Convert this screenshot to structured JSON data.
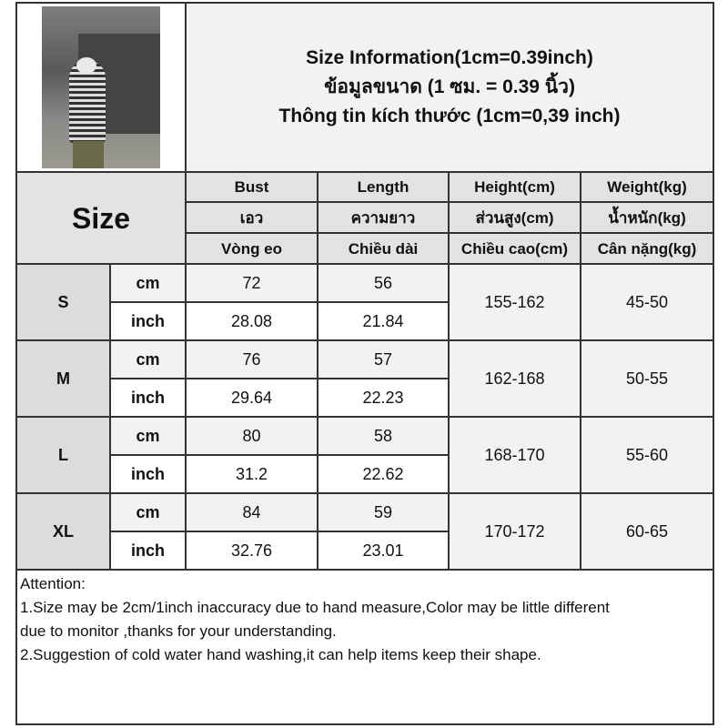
{
  "title": {
    "line1": "Size Information(1cm=0.39inch)",
    "line2": "ข้อมูลขนาด (1 ซม. = 0.39 นิ้ว)",
    "line3": "Thông tin kích thước (1cm=0,39 inch)"
  },
  "header": {
    "size_label": "Size",
    "columns": [
      {
        "en": "Bust",
        "th": "เอว",
        "vi": "Vòng eo"
      },
      {
        "en": "Length",
        "th": "ความยาว",
        "vi": "Chiều dài"
      },
      {
        "en": "Height(cm)",
        "th": "ส่วนสูง(cm)",
        "vi": "Chiều cao(cm)"
      },
      {
        "en": "Weight(kg)",
        "th": "น้ำหนัก(kg)",
        "vi": "Cân nặng(kg)"
      }
    ]
  },
  "units": {
    "cm": "cm",
    "inch": "inch"
  },
  "rows": [
    {
      "size": "S",
      "bust_cm": "72",
      "length_cm": "56",
      "bust_inch": "28.08",
      "length_inch": "21.84",
      "height": "155-162",
      "weight": "45-50"
    },
    {
      "size": "M",
      "bust_cm": "76",
      "length_cm": "57",
      "bust_inch": "29.64",
      "length_inch": "22.23",
      "height": "162-168",
      "weight": "50-55"
    },
    {
      "size": "L",
      "bust_cm": "80",
      "length_cm": "58",
      "bust_inch": "31.2",
      "length_inch": "22.62",
      "height": "168-170",
      "weight": "55-60"
    },
    {
      "size": "XL",
      "bust_cm": "84",
      "length_cm": "59",
      "bust_inch": "32.76",
      "length_inch": "23.01",
      "height": "170-172",
      "weight": "60-65"
    }
  ],
  "notes": {
    "heading": "Attention:",
    "line1": "1.Size may be 2cm/1inch inaccuracy due to hand measure,Color may be little different",
    "line2": "due to monitor ,thanks for your understanding.",
    "line3": "2.Suggestion of cold water hand washing,it can help items keep their shape."
  }
}
